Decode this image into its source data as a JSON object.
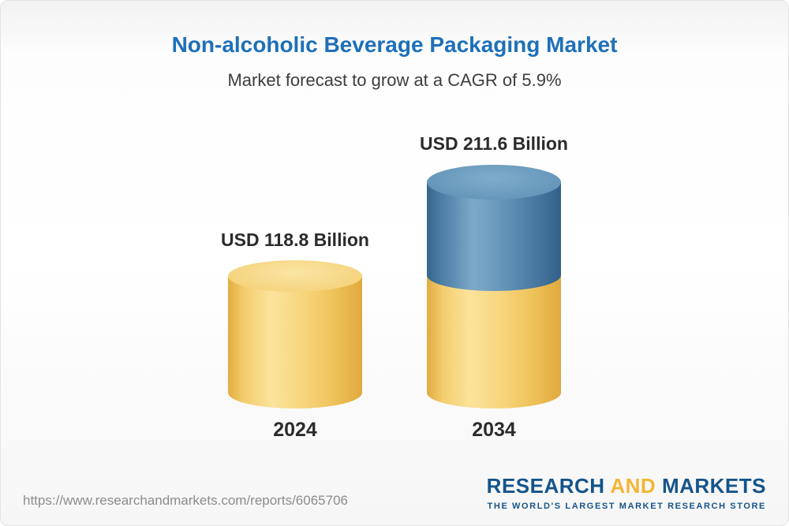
{
  "chart_data": {
    "type": "bar",
    "title": "Non-alcoholic Beverage Packaging Market",
    "subtitle": "Market forecast to grow at a CAGR of 5.9%",
    "cagr_percent": 5.9,
    "unit": "USD Billion",
    "categories": [
      "2024",
      "2034"
    ],
    "values": [
      118.8,
      211.6
    ],
    "bars": [
      {
        "category": "2024",
        "value": 118.8,
        "value_label": "USD 118.8 Billion",
        "color": "#F4CF6F"
      },
      {
        "category": "2034",
        "value": 211.6,
        "value_label": "USD 211.6 Billion",
        "base_color": "#F4CF6F",
        "growth_color": "#4C7DA3"
      }
    ],
    "legend": "none",
    "grid": false,
    "bar_style": "3d-cylinder"
  },
  "footer": {
    "url": "https://www.researchandmarkets.com/reports/6065706",
    "logo": {
      "part1": "RESEARCH",
      "part2": "AND",
      "part3": "MARKETS",
      "tagline": "THE WORLD'S LARGEST MARKET RESEARCH STORE"
    }
  },
  "colors": {
    "title": "#1E70B8",
    "subtitle": "#3D3D3D",
    "labels": "#2B2B2B",
    "cylinder_yellow": "#F4CF6F",
    "cylinder_blue": "#4C7DA3",
    "logo_blue": "#15548A",
    "logo_yellow": "#F2B636",
    "url_gray": "#8C8C8C"
  }
}
